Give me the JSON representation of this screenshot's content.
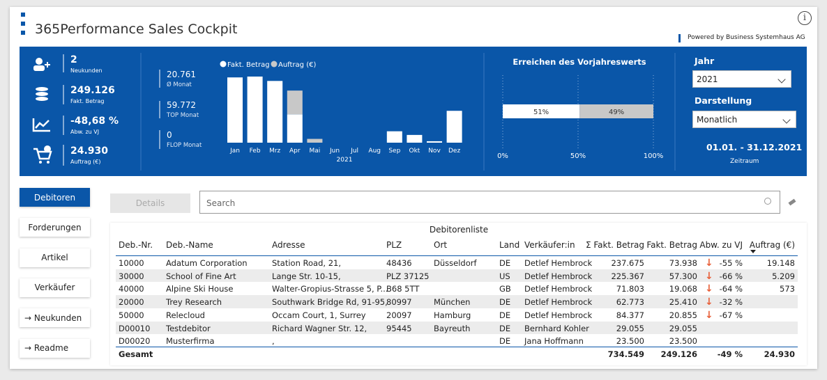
{
  "header": {
    "title": "365Performance Sales Cockpit",
    "powered": "Powered by Business Systemhaus AG"
  },
  "kpis": [
    {
      "value": "2",
      "label": "Neukunden"
    },
    {
      "value": "249.126",
      "label": "Fakt. Betrag"
    },
    {
      "value": "-48,68 %",
      "label": "Abw. zu VJ"
    },
    {
      "value": "24.930",
      "label": "Auftrag (€)"
    }
  ],
  "stats": [
    {
      "value": "20.761",
      "label": "Ø Monat"
    },
    {
      "value": "59.772",
      "label": "TOP Monat"
    },
    {
      "value": "0",
      "label": "FLOP Monat"
    }
  ],
  "monthly_chart": {
    "type": "bar",
    "stacked": true,
    "categories": [
      "Jan",
      "Feb",
      "Mrz",
      "Apr",
      "Mai",
      "Jun",
      "Jul",
      "Aug",
      "Sep",
      "Okt",
      "Nov",
      "Dez"
    ],
    "x_label": "2021",
    "series": [
      {
        "name": "Fakt. Betrag",
        "color": "#ffffff",
        "values": [
          59000,
          59772,
          55800,
          25600,
          0,
          0,
          0,
          0,
          10300,
          7000,
          1300,
          28800
        ]
      },
      {
        "name": "Auftrag (€)",
        "color": "#c8c8c8",
        "values": [
          0,
          0,
          0,
          21500,
          3430,
          0,
          0,
          0,
          0,
          0,
          0,
          0
        ]
      }
    ]
  },
  "progress": {
    "title": "Erreichen des Vorjahreswerts",
    "values": [
      51,
      49
    ],
    "value_labels": [
      "51%",
      "49%"
    ],
    "colors": [
      "#ffffff",
      "#c8c8c8"
    ],
    "ticks": [
      {
        "value": 0,
        "label": "0%"
      },
      {
        "value": 50,
        "label": "50%"
      },
      {
        "value": 100,
        "label": "100%"
      }
    ]
  },
  "filters": {
    "year_label": "Jahr",
    "year": "2021",
    "view_label": "Darstellung",
    "view": "Monatlich",
    "period": "01.01. - 31.12.2021",
    "period_label": "Zeitraum"
  },
  "nav": [
    "Debitoren",
    "Forderungen",
    "Artikel",
    "Verkäufer",
    "→ Neukunden",
    "→ Readme"
  ],
  "toolbar": {
    "details": "Details",
    "search": "Search"
  },
  "table": {
    "title": "Debitorenliste",
    "columns": [
      "Deb.-Nr.",
      "Deb.-Name",
      "Adresse",
      "PLZ",
      "Ort",
      "Land",
      "Verkäufer:in",
      "Σ Fakt. Betrag",
      "Fakt. Betrag",
      "Abw. zu VJ",
      "Auftrag (€)"
    ],
    "rows": [
      [
        "10000",
        "Adatum Corporation",
        "Station Road, 21,",
        "48436",
        "Düsseldorf",
        "DE",
        "Detlef Hembrock",
        "237.675",
        "73.938",
        "-55 %",
        "19.148"
      ],
      [
        "30000",
        "School of Fine Art",
        "Lange Str. 10-15,",
        "PLZ 37125",
        null,
        "US",
        "Detlef Hembrock",
        "225.367",
        "57.300",
        "-66 %",
        "5.209"
      ],
      [
        "40000",
        "Alpine Ski House",
        "Walter-Gropius-Strasse 5, P...",
        "B68 5TT",
        null,
        "GB",
        "Detlef Hembrock",
        "71.803",
        "19.068",
        "-64 %",
        "573"
      ],
      [
        "20000",
        "Trey Research",
        "Southwark Bridge Rd, 91-95,",
        "80997",
        "München",
        "DE",
        "Detlef Hembrock",
        "62.773",
        "25.410",
        "-32 %",
        null
      ],
      [
        "50000",
        "Relecloud",
        "Occam Court, 1, Surrey",
        "20097",
        "Hamburg",
        "DE",
        "Detlef Hembrock",
        "84.377",
        "20.855",
        "-67 %",
        null
      ],
      [
        "D00010",
        "Testdebitor",
        "Richard Wagner Str. 12,",
        "95445",
        "Bayreuth",
        "DE",
        "Bernhard Kohler",
        "29.055",
        "29.055",
        null,
        null
      ],
      [
        "D00020",
        "Musterfirma",
        ",",
        null,
        null,
        "DE",
        "Jana Hoffmann",
        "23.500",
        "23.500",
        null,
        null
      ]
    ],
    "total": [
      "Gesamt",
      null,
      null,
      null,
      null,
      null,
      null,
      "734.549",
      "249.126",
      "-49 %",
      "24.930"
    ]
  }
}
